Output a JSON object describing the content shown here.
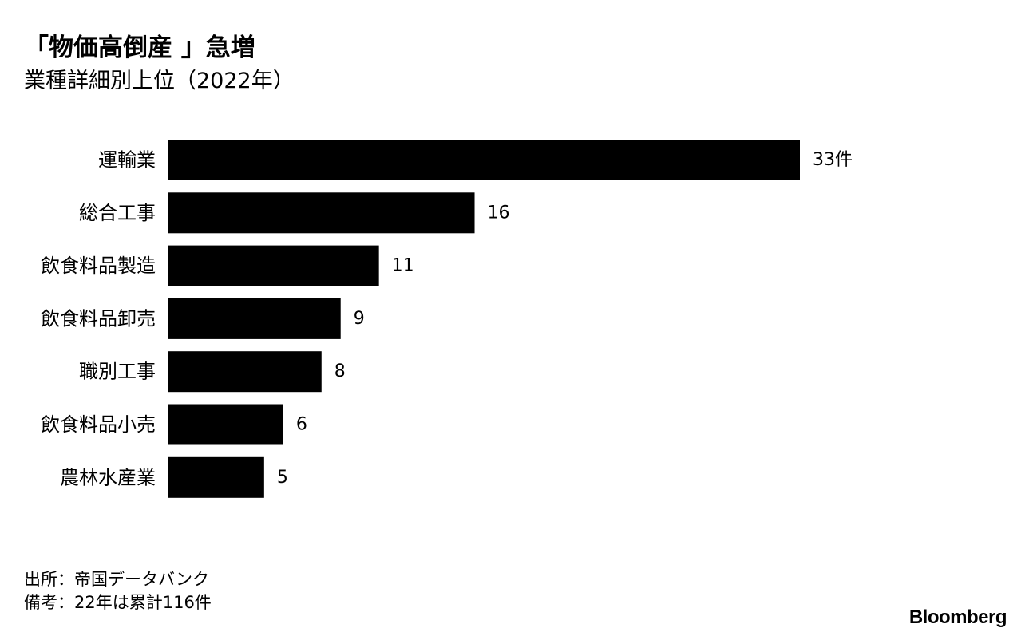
{
  "title": "「物価高倒産 」急増",
  "subtitle": "業種詳細別上位（2022年）",
  "chart_data": {
    "type": "bar",
    "orientation": "horizontal",
    "categories": [
      "運輸業",
      "総合工事",
      "飲食料品製造",
      "飲食料品卸売",
      "職別工事",
      "飲食料品小売",
      "農林水産業"
    ],
    "values": [
      33,
      16,
      11,
      9,
      8,
      6,
      5
    ],
    "value_labels": [
      "33件",
      "16",
      "11",
      "9",
      "8",
      "6",
      "5"
    ],
    "bar_color": "#000000",
    "xlim": [
      0,
      33
    ],
    "grid": false,
    "legend": "none"
  },
  "notes": {
    "source": "出所：帝国データバンク",
    "remark": "備考：22年は累計116件"
  },
  "brand": "Bloomberg"
}
